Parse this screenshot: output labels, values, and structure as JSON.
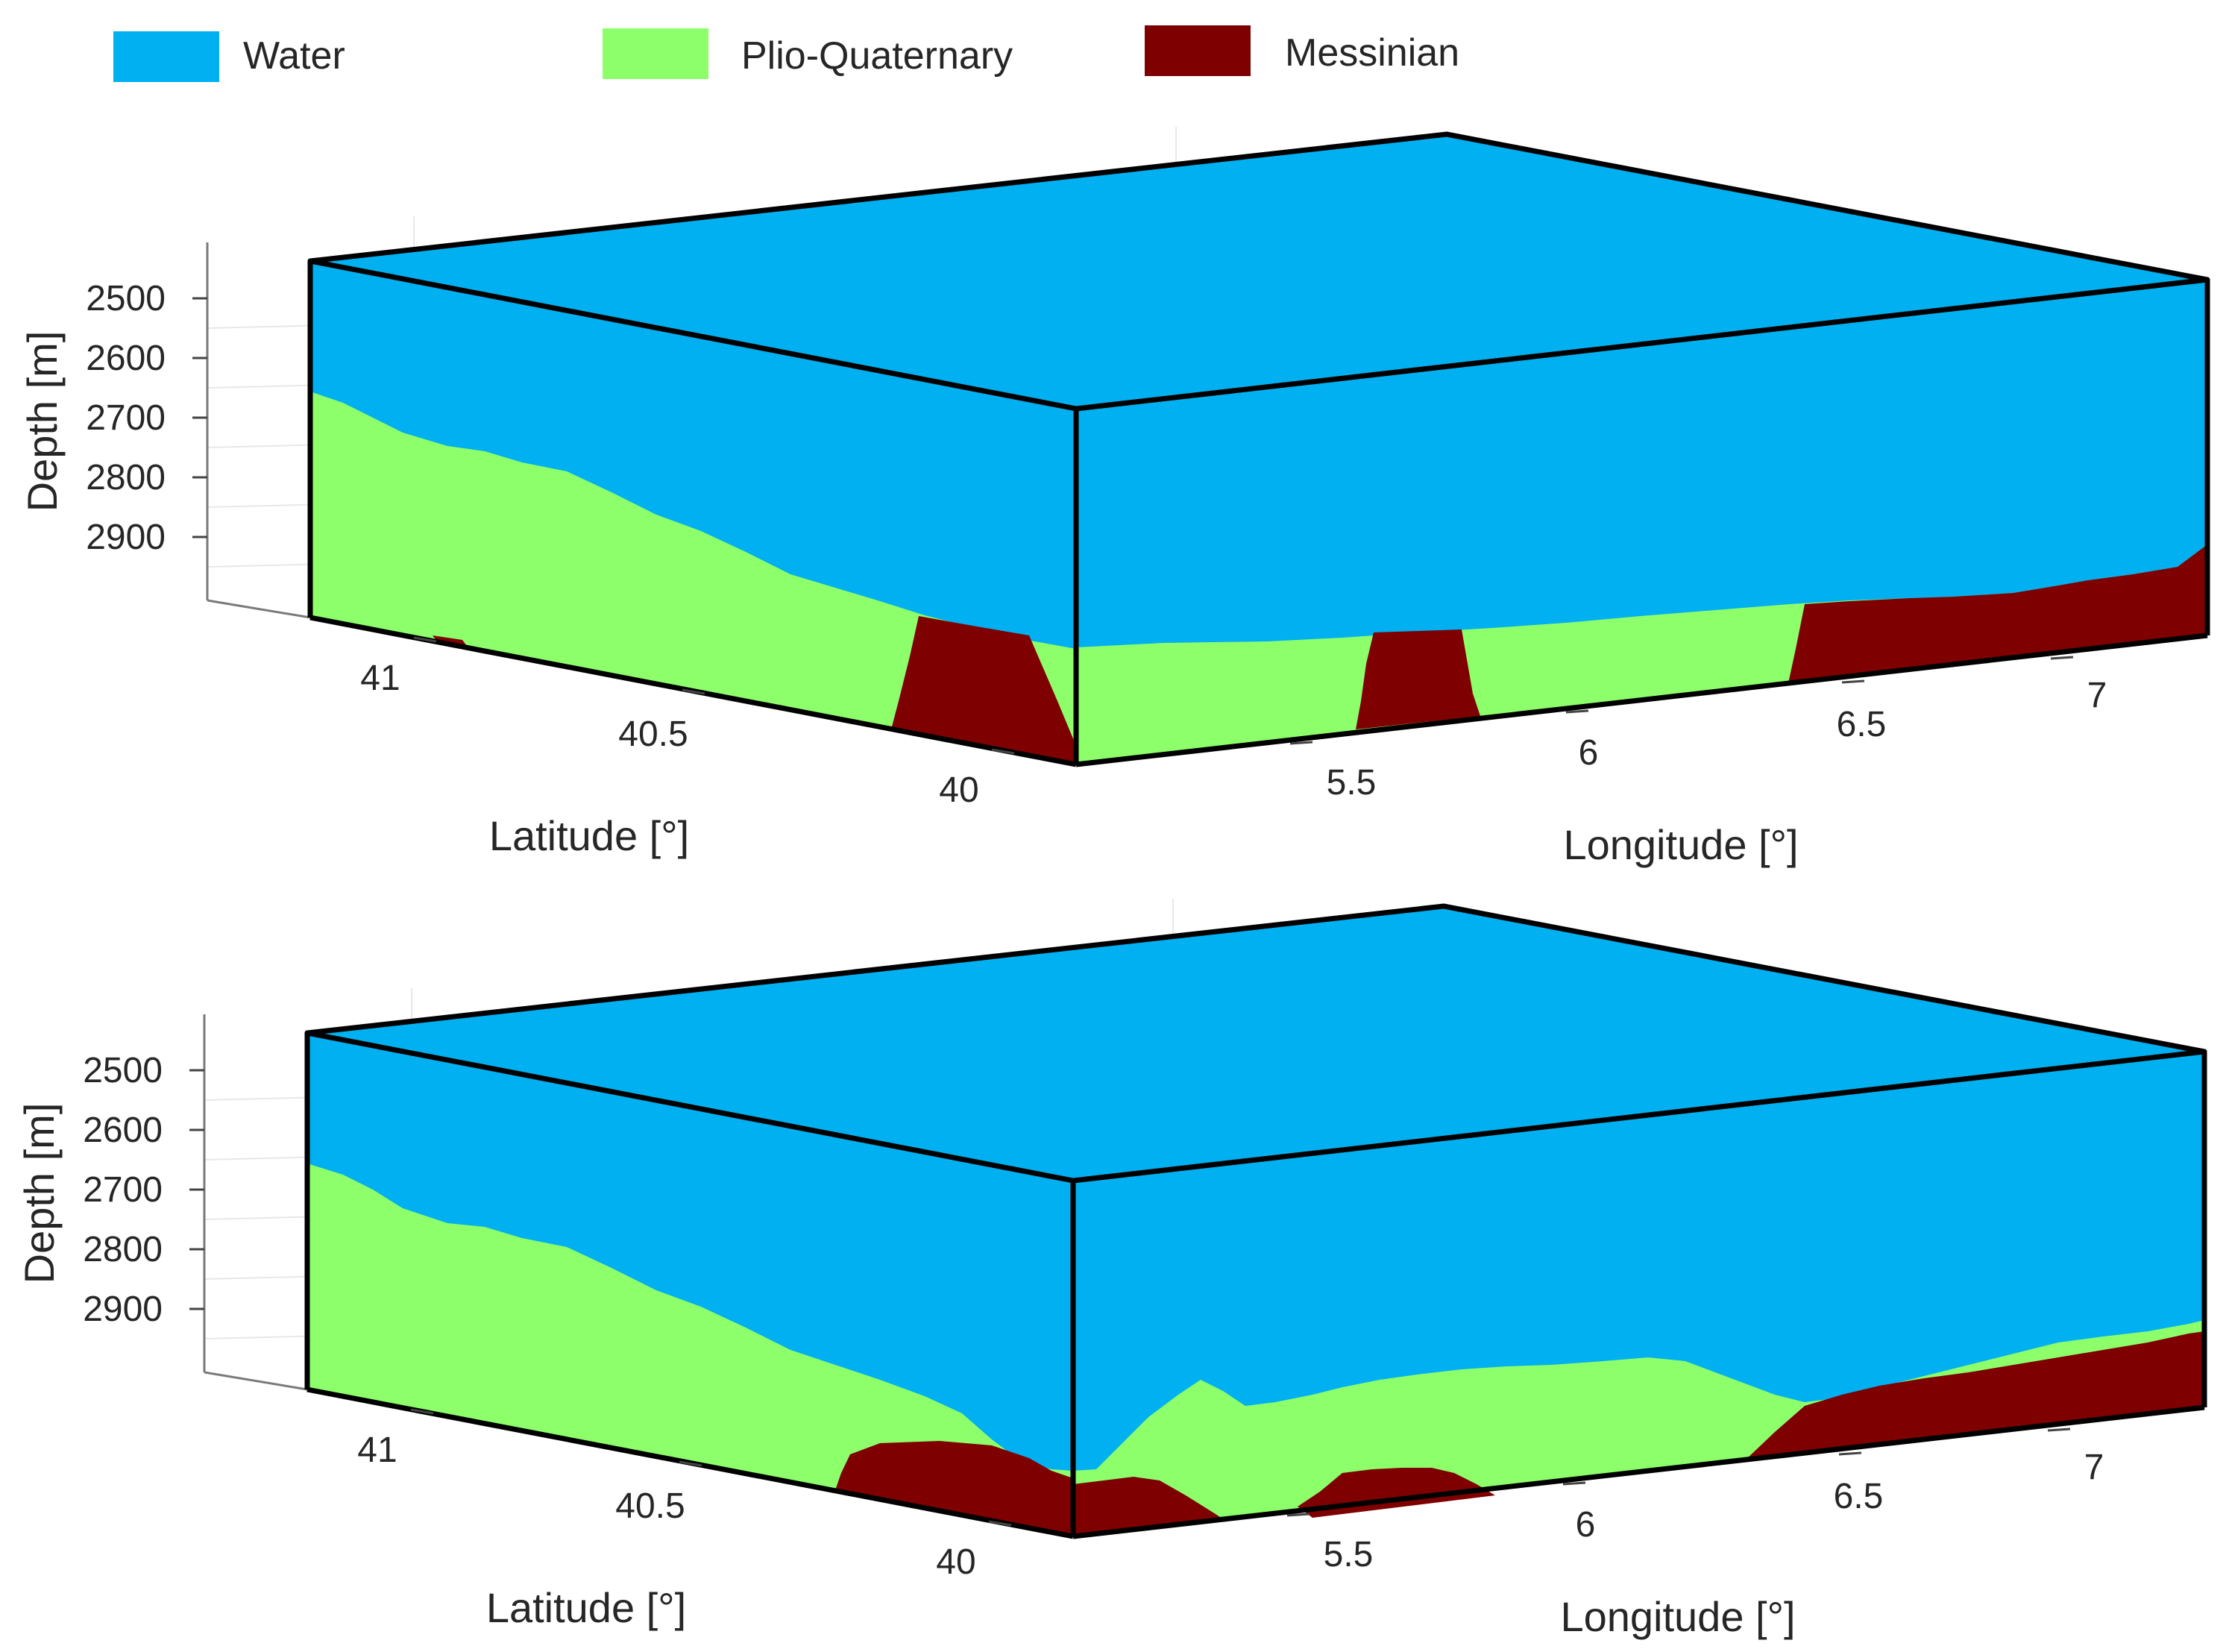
{
  "legend": {
    "water": {
      "label": "Water",
      "color": "#00B0F0"
    },
    "plio_quaternary": {
      "label": "Plio-Quaternary",
      "color": "#8CFF6B"
    },
    "messinian": {
      "label": "Messinian",
      "color": "#7F0000"
    }
  },
  "panels": [
    {
      "id": "top",
      "depth_axis": {
        "label": "Depth [m]",
        "ticks": [
          "2500",
          "2600",
          "2700",
          "2800",
          "2900"
        ]
      },
      "latitude_axis": {
        "label": "Latitude [°]",
        "ticks": [
          "41",
          "40.5",
          "40"
        ]
      },
      "longitude_axis": {
        "label": "Longitude [°]",
        "ticks": [
          "5.5",
          "6",
          "6.5",
          "7"
        ]
      }
    },
    {
      "id": "bottom",
      "depth_axis": {
        "label": "Depth [m]",
        "ticks": [
          "2500",
          "2600",
          "2700",
          "2800",
          "2900"
        ]
      },
      "latitude_axis": {
        "label": "Latitude [°]",
        "ticks": [
          "41",
          "40.5",
          "40"
        ]
      },
      "longitude_axis": {
        "label": "Longitude [°]",
        "ticks": [
          "5.5",
          "6",
          "6.5",
          "7"
        ]
      }
    }
  ]
}
